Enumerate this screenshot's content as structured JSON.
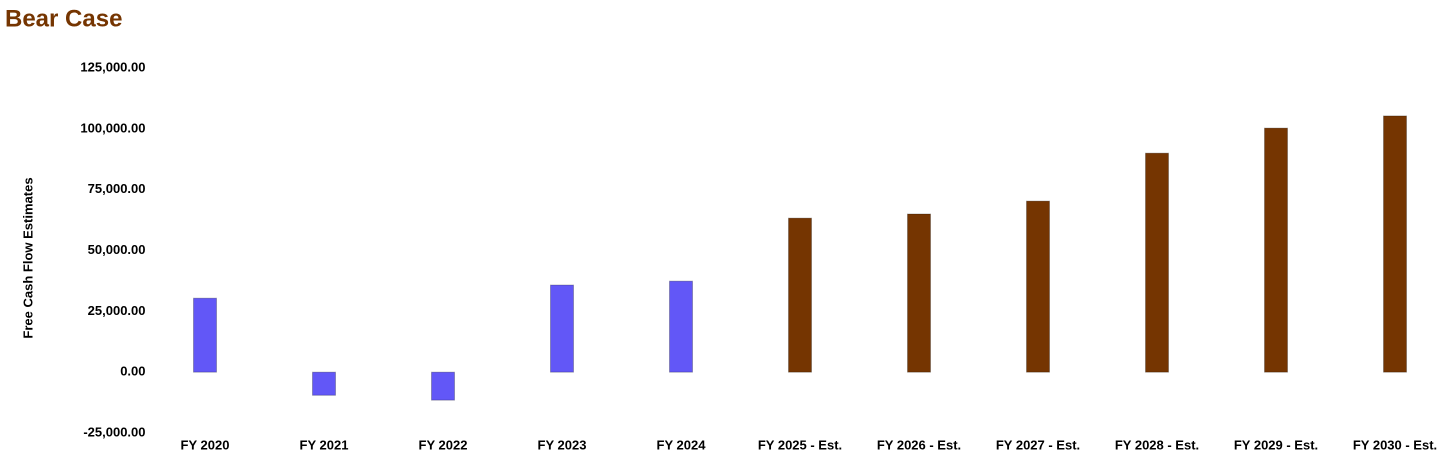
{
  "chart_data": {
    "type": "bar",
    "title": "Bear Case",
    "title_color": "#753501",
    "y_label": "Free Cash Flow Estimates",
    "categories": [
      "FY 2020",
      "FY 2021",
      "FY 2022",
      "FY 2023",
      "FY 2024",
      "FY 2025 - Est.",
      "FY 2026 - Est.",
      "FY 2027 - Est.",
      "FY 2028 - Est.",
      "FY 2029 - Est.",
      "FY 2030 - Est."
    ],
    "values": [
      30400,
      -9500,
      -11500,
      35800,
      37400,
      63300,
      65000,
      70300,
      90000,
      100300,
      105300
    ],
    "colors": [
      "#6257f7",
      "#6257f7",
      "#6257f7",
      "#6257f7",
      "#6257f7",
      "#753501",
      "#753501",
      "#753501",
      "#753501",
      "#753501",
      "#753501"
    ],
    "ylim": [
      -25000,
      125000
    ],
    "yticks": [
      {
        "value": -25000,
        "label": "-25,000.00"
      },
      {
        "value": 0,
        "label": "0.00"
      },
      {
        "value": 25000,
        "label": "25,000.00"
      },
      {
        "value": 50000,
        "label": "50,000.00"
      },
      {
        "value": 75000,
        "label": "75,000.00"
      },
      {
        "value": 100000,
        "label": "100,000.00"
      },
      {
        "value": 125000,
        "label": "125,000.00"
      }
    ],
    "grid": false
  }
}
